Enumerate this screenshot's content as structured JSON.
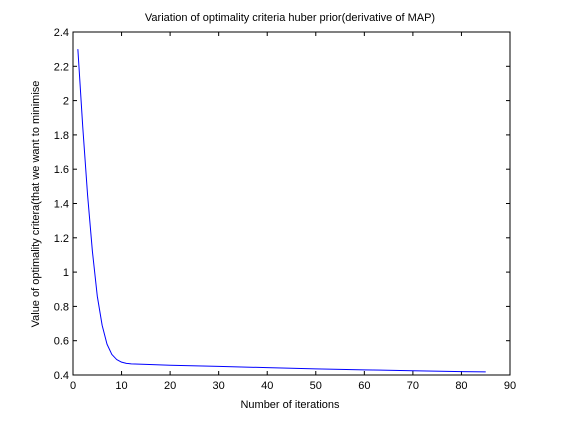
{
  "chart_data": {
    "type": "line",
    "title": "Variation of optimality criteria huber prior(derivative of MAP)",
    "xlabel": "Number of iterations",
    "ylabel": "Value of optimality critera(that we want to minimise",
    "xlim": [
      0,
      90
    ],
    "ylim": [
      0.4,
      2.4
    ],
    "xticks": [
      0,
      10,
      20,
      30,
      40,
      50,
      60,
      70,
      80,
      90
    ],
    "yticks": [
      0.4,
      0.6,
      0.8,
      1,
      1.2,
      1.4,
      1.6,
      1.8,
      2,
      2.2,
      2.4
    ],
    "xtick_labels": [
      "0",
      "10",
      "20",
      "30",
      "40",
      "50",
      "60",
      "70",
      "80",
      "90"
    ],
    "ytick_labels": [
      "0.4",
      "0.6",
      "0.8",
      "1",
      "1.2",
      "1.4",
      "1.6",
      "1.8",
      "2",
      "2.2",
      "2.4"
    ],
    "grid": false,
    "series": [
      {
        "color": "#0000ff",
        "x": [
          1,
          2,
          3,
          4,
          5,
          6,
          7,
          8,
          9,
          10,
          11,
          12,
          15,
          20,
          30,
          40,
          50,
          60,
          70,
          80,
          85
        ],
        "y": [
          2.3,
          1.85,
          1.45,
          1.12,
          0.86,
          0.69,
          0.58,
          0.52,
          0.49,
          0.475,
          0.468,
          0.465,
          0.462,
          0.457,
          0.45,
          0.443,
          0.436,
          0.43,
          0.425,
          0.42,
          0.418
        ]
      }
    ]
  }
}
